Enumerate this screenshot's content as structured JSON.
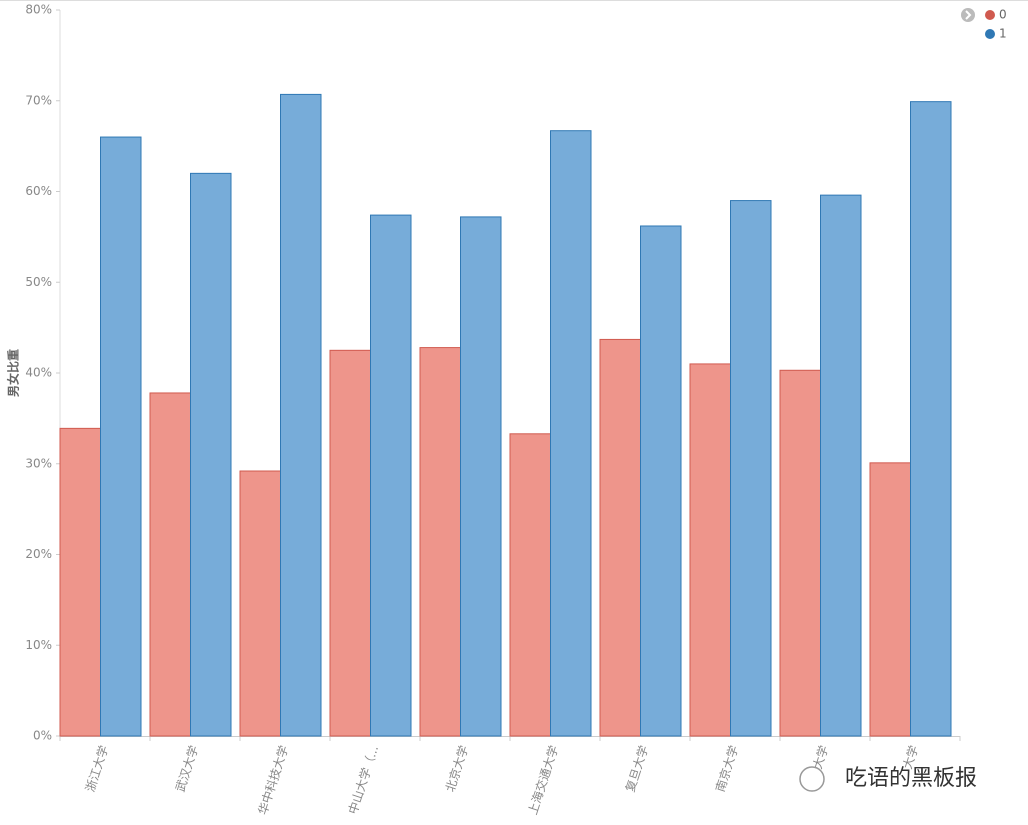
{
  "chart_data": {
    "type": "bar",
    "y_label": "男女比重",
    "categories": [
      "浙江大学",
      "武汉大学",
      "华中科技大学",
      "中山大学（...",
      "北京大学",
      "上海交通大学",
      "复旦大学",
      "南京大学",
      "大学",
      "大学"
    ],
    "series": [
      {
        "name": "0",
        "color": "#ee958b",
        "stroke": "#d05a4f",
        "values": [
          33.9,
          37.8,
          29.2,
          42.5,
          42.8,
          33.3,
          43.7,
          41.0,
          40.3,
          30.1
        ]
      },
      {
        "name": "1",
        "color": "#77acd9",
        "stroke": "#2f78b4",
        "values": [
          66.0,
          62.0,
          70.7,
          57.4,
          57.2,
          66.7,
          56.2,
          59.0,
          59.6,
          69.9
        ]
      }
    ],
    "ylim": [
      0,
      80
    ],
    "yticks": [
      {
        "value": 0,
        "label": "0%"
      },
      {
        "value": 10,
        "label": "10%"
      },
      {
        "value": 20,
        "label": "20%"
      },
      {
        "value": 30,
        "label": "30%"
      },
      {
        "value": 40,
        "label": "40%"
      },
      {
        "value": 50,
        "label": "50%"
      },
      {
        "value": 60,
        "label": "60%"
      },
      {
        "value": 70,
        "label": "70%"
      },
      {
        "value": 80,
        "label": "80%"
      }
    ],
    "legend": "top-right",
    "watermark": "吃语的黑板报"
  }
}
